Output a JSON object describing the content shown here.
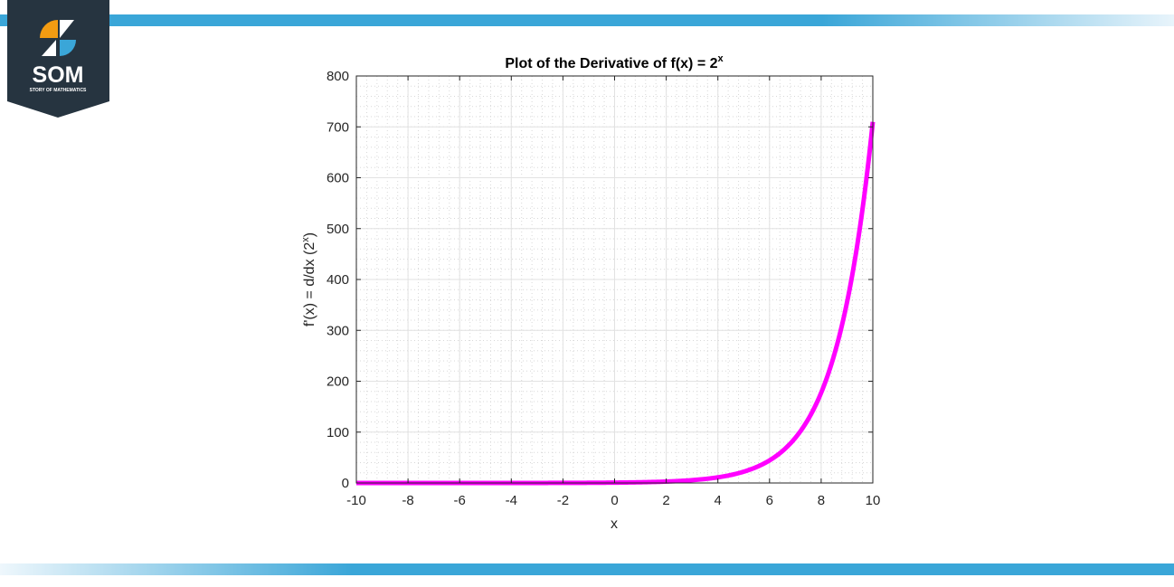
{
  "logo": {
    "text": "SOM",
    "subtext": "STORY OF MATHEMATICS",
    "colors": {
      "bg": "#263440",
      "orange": "#f39c12",
      "blue": "#3aa6d8"
    }
  },
  "chart_data": {
    "type": "line",
    "title": "Plot of the Derivative of f(x) = 2",
    "title_superscript": "x",
    "xlabel": "x",
    "ylabel": "f'(x) = d/dx (2",
    "ylabel_superscript": "x",
    "ylabel_suffix": ")",
    "xlim": [
      -10,
      10
    ],
    "ylim": [
      0,
      800
    ],
    "xticks": [
      "-10",
      "-8",
      "-6",
      "-4",
      "-2",
      "0",
      "2",
      "4",
      "6",
      "8",
      "10"
    ],
    "yticks": [
      "0",
      "100",
      "200",
      "300",
      "400",
      "500",
      "600",
      "700",
      "800"
    ],
    "grid": "major and minor",
    "series": [
      {
        "function": "ln(2)*2^x",
        "color": "#ff00ff",
        "x": [
          -10,
          -8,
          -6,
          -4,
          -2,
          0,
          2,
          4,
          5,
          6,
          7,
          8,
          8.5,
          9,
          9.5,
          10
        ],
        "y": [
          0.0007,
          0.0027,
          0.011,
          0.043,
          0.17,
          0.69,
          2.77,
          11.09,
          22.18,
          44.36,
          88.72,
          177.45,
          250.95,
          354.89,
          501.89,
          709.78
        ]
      }
    ]
  }
}
